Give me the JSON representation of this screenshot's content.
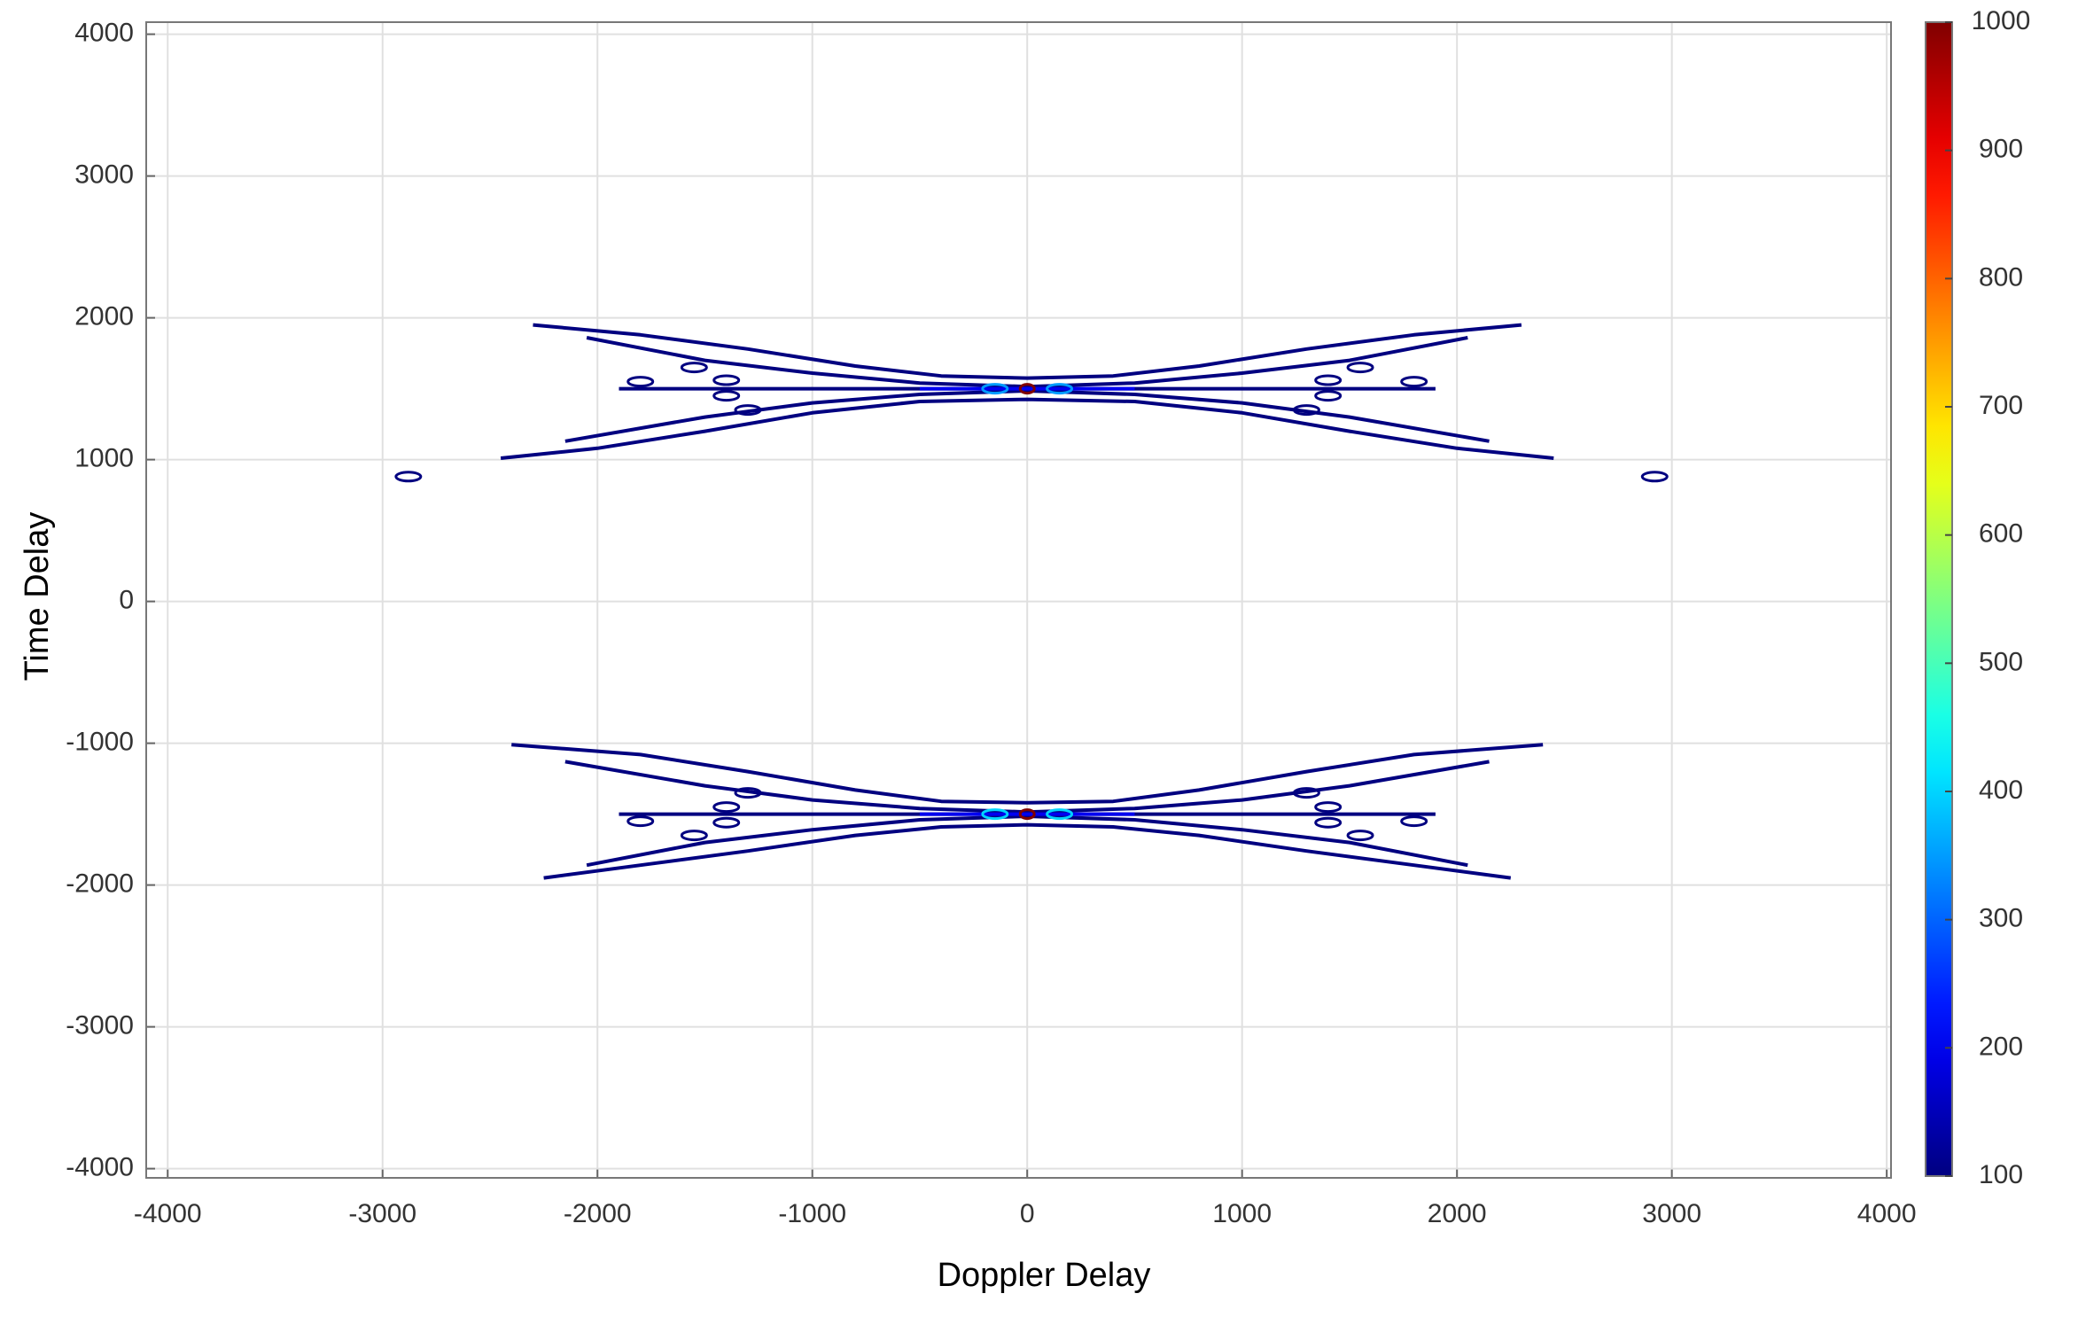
{
  "chart_data": {
    "type": "contour",
    "xlabel": "Doppler Delay",
    "ylabel": "Time Delay",
    "xlim": [
      -4100,
      4020
    ],
    "ylim": [
      -4065,
      4085
    ],
    "xticks": [
      -4000,
      -3000,
      -2000,
      -1000,
      0,
      1000,
      2000,
      3000,
      4000
    ],
    "yticks": [
      -4000,
      -3000,
      -2000,
      -1000,
      0,
      1000,
      2000,
      3000,
      4000
    ],
    "grid": true,
    "colormap": "jet",
    "clim": [
      100,
      1000
    ],
    "cticks": [
      100,
      200,
      300,
      400,
      500,
      600,
      700,
      800,
      900,
      1000
    ],
    "traces": [
      {
        "level": 100,
        "x": [
          -2300,
          -1800,
          -1300,
          -800,
          -400,
          0,
          400,
          800,
          1300,
          1800,
          2300
        ],
        "y": [
          1950,
          1880,
          1780,
          1660,
          1590,
          1575,
          1590,
          1660,
          1780,
          1880,
          1950
        ]
      },
      {
        "level": 100,
        "x": [
          -2450,
          -2000,
          -1500,
          -1000,
          -500,
          0,
          500,
          1000,
          1500,
          2000,
          2450
        ],
        "y": [
          1010,
          1080,
          1200,
          1330,
          1410,
          1425,
          1410,
          1330,
          1200,
          1080,
          1010
        ]
      },
      {
        "level": 100,
        "x": [
          -2050,
          -1500,
          -1000,
          -500,
          0,
          500,
          1000,
          1500,
          2050
        ],
        "y": [
          1860,
          1700,
          1610,
          1540,
          1515,
          1540,
          1610,
          1700,
          1860
        ]
      },
      {
        "level": 100,
        "x": [
          -2150,
          -1500,
          -1000,
          -500,
          0,
          500,
          1000,
          1500,
          2150
        ],
        "y": [
          1130,
          1300,
          1400,
          1460,
          1485,
          1460,
          1400,
          1300,
          1130
        ]
      },
      {
        "level": 100,
        "x": [
          -1900,
          1900
        ],
        "y": [
          1500,
          1500
        ]
      },
      {
        "level": 100,
        "x": [
          -2400,
          -1800,
          -1300,
          -800,
          -400,
          0,
          400,
          800,
          1300,
          1800,
          2400
        ],
        "y": [
          -1010,
          -1080,
          -1200,
          -1330,
          -1410,
          -1420,
          -1410,
          -1330,
          -1200,
          -1080,
          -1010
        ]
      },
      {
        "level": 100,
        "x": [
          -2250,
          -1800,
          -1300,
          -800,
          -400,
          0,
          400,
          800,
          1300,
          1800,
          2250
        ],
        "y": [
          -1950,
          -1860,
          -1760,
          -1650,
          -1590,
          -1575,
          -1590,
          -1650,
          -1760,
          -1860,
          -1950
        ]
      },
      {
        "level": 100,
        "x": [
          -2150,
          -1500,
          -1000,
          -500,
          0,
          500,
          1000,
          1500,
          2150
        ],
        "y": [
          -1130,
          -1300,
          -1400,
          -1460,
          -1485,
          -1460,
          -1400,
          -1300,
          -1130
        ]
      },
      {
        "level": 100,
        "x": [
          -2050,
          -1500,
          -1000,
          -500,
          0,
          500,
          1000,
          1500,
          2050
        ],
        "y": [
          -1860,
          -1700,
          -1610,
          -1540,
          -1515,
          -1540,
          -1610,
          -1700,
          -1860
        ]
      },
      {
        "level": 100,
        "x": [
          -1900,
          1900
        ],
        "y": [
          -1500,
          -1500
        ]
      },
      {
        "level": 200,
        "x": [
          -500,
          500
        ],
        "y": [
          1500,
          1500
        ]
      },
      {
        "level": 200,
        "x": [
          -500,
          500
        ],
        "y": [
          -1500,
          -1500
        ]
      }
    ],
    "spots": [
      {
        "x": 0,
        "y": 1500,
        "level": 1000
      },
      {
        "x": 0,
        "y": -1500,
        "level": 1000
      },
      {
        "x": -150,
        "y": 1500,
        "level": 350
      },
      {
        "x": 150,
        "y": 1500,
        "level": 350
      },
      {
        "x": -150,
        "y": -1500,
        "level": 400
      },
      {
        "x": 150,
        "y": -1500,
        "level": 400
      },
      {
        "x": -2880,
        "y": 880,
        "level": 100
      },
      {
        "x": 2920,
        "y": 880,
        "level": 100
      },
      {
        "x": -1400,
        "y": 1560,
        "level": 100
      },
      {
        "x": -1400,
        "y": 1450,
        "level": 100
      },
      {
        "x": -1550,
        "y": 1650,
        "level": 100
      },
      {
        "x": -1300,
        "y": 1350,
        "level": 100
      },
      {
        "x": -1800,
        "y": 1550,
        "level": 100
      },
      {
        "x": 1400,
        "y": 1560,
        "level": 100
      },
      {
        "x": 1400,
        "y": 1450,
        "level": 100
      },
      {
        "x": 1550,
        "y": 1650,
        "level": 100
      },
      {
        "x": 1300,
        "y": 1350,
        "level": 100
      },
      {
        "x": 1800,
        "y": 1550,
        "level": 100
      },
      {
        "x": -1400,
        "y": -1560,
        "level": 100
      },
      {
        "x": -1400,
        "y": -1450,
        "level": 100
      },
      {
        "x": -1550,
        "y": -1650,
        "level": 100
      },
      {
        "x": -1300,
        "y": -1350,
        "level": 100
      },
      {
        "x": -1800,
        "y": -1550,
        "level": 100
      },
      {
        "x": 1400,
        "y": -1560,
        "level": 100
      },
      {
        "x": 1400,
        "y": -1450,
        "level": 100
      },
      {
        "x": 1550,
        "y": -1650,
        "level": 100
      },
      {
        "x": 1300,
        "y": -1350,
        "level": 100
      },
      {
        "x": 1800,
        "y": -1550,
        "level": 100
      }
    ]
  }
}
